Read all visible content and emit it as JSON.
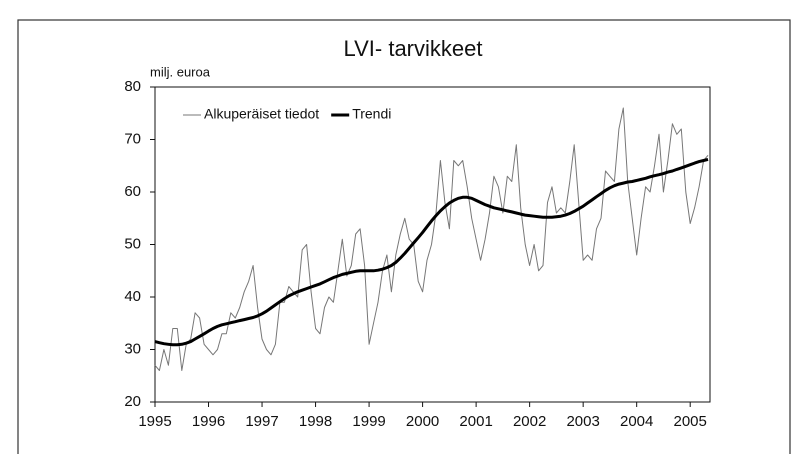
{
  "chart_data": {
    "type": "line",
    "title": "LVI- tarvikkeet",
    "y_label": "milj. euroa",
    "xlim": [
      1995,
      2005.37
    ],
    "xticks": [
      1995,
      1996,
      1997,
      1998,
      1999,
      2000,
      2001,
      2002,
      2003,
      2004,
      2005
    ],
    "ylim": [
      20,
      80
    ],
    "yticks": [
      20,
      30,
      40,
      50,
      60,
      70,
      80
    ],
    "legend": "top-left",
    "x": [
      1995,
      1995.083,
      1995.167,
      1995.25,
      1995.333,
      1995.417,
      1995.5,
      1995.583,
      1995.667,
      1995.75,
      1995.833,
      1995.917,
      1996,
      1996.083,
      1996.167,
      1996.25,
      1996.333,
      1996.417,
      1996.5,
      1996.583,
      1996.667,
      1996.75,
      1996.833,
      1996.917,
      1997,
      1997.083,
      1997.167,
      1997.25,
      1997.333,
      1997.417,
      1997.5,
      1997.583,
      1997.667,
      1997.75,
      1997.833,
      1997.917,
      1998,
      1998.083,
      1998.167,
      1998.25,
      1998.333,
      1998.417,
      1998.5,
      1998.583,
      1998.667,
      1998.75,
      1998.833,
      1998.917,
      1999,
      1999.083,
      1999.167,
      1999.25,
      1999.333,
      1999.417,
      1999.5,
      1999.583,
      1999.667,
      1999.75,
      1999.833,
      1999.917,
      2000,
      2000.083,
      2000.167,
      2000.25,
      2000.333,
      2000.417,
      2000.5,
      2000.583,
      2000.667,
      2000.75,
      2000.833,
      2000.917,
      2001,
      2001.083,
      2001.167,
      2001.25,
      2001.333,
      2001.417,
      2001.5,
      2001.583,
      2001.667,
      2001.75,
      2001.833,
      2001.917,
      2002,
      2002.083,
      2002.167,
      2002.25,
      2002.333,
      2002.417,
      2002.5,
      2002.583,
      2002.667,
      2002.75,
      2002.833,
      2002.917,
      2003,
      2003.083,
      2003.167,
      2003.25,
      2003.333,
      2003.417,
      2003.5,
      2003.583,
      2003.667,
      2003.75,
      2003.833,
      2003.917,
      2004,
      2004.083,
      2004.167,
      2004.25,
      2004.333,
      2004.417,
      2004.5,
      2004.583,
      2004.667,
      2004.75,
      2004.833,
      2004.917,
      2005,
      2005.083,
      2005.167,
      2005.25,
      2005.333
    ],
    "series": [
      {
        "name": "Alkuperäiset tiedot",
        "color": "#777777",
        "width": 1,
        "values": [
          27,
          26,
          30,
          27,
          34,
          34,
          26,
          31,
          32,
          37,
          36,
          31,
          30,
          29,
          30,
          33,
          33,
          37,
          36,
          38,
          41,
          43,
          46,
          38,
          32,
          30,
          29,
          31,
          39,
          39,
          42,
          41,
          40,
          49,
          50,
          41,
          34,
          33,
          38,
          40,
          39,
          45,
          51,
          44,
          46,
          52,
          53,
          46,
          31,
          35,
          39,
          45,
          48,
          41,
          48,
          52,
          55,
          51,
          50,
          43,
          41,
          47,
          50,
          56,
          66,
          58,
          53,
          66,
          65,
          66,
          61,
          55,
          51,
          47,
          51,
          56,
          63,
          61,
          56,
          63,
          62,
          69,
          57,
          50,
          46,
          50,
          45,
          46,
          58,
          61,
          56,
          57,
          56,
          62,
          69,
          58,
          47,
          48,
          47,
          53,
          55,
          64,
          63,
          62,
          72,
          76,
          62,
          55,
          48,
          55,
          61,
          60,
          65,
          71,
          60,
          66,
          73,
          71,
          72,
          60,
          54,
          57,
          61,
          66,
          67
        ]
      },
      {
        "name": "Trendi",
        "color": "#000000",
        "width": 3,
        "values": [
          31.5,
          31.3,
          31.1,
          31,
          30.9,
          30.9,
          31,
          31.2,
          31.5,
          32,
          32.5,
          33,
          33.5,
          34,
          34.4,
          34.7,
          34.9,
          35.1,
          35.3,
          35.5,
          35.7,
          35.9,
          36.1,
          36.4,
          36.8,
          37.3,
          37.9,
          38.5,
          39.1,
          39.7,
          40.2,
          40.6,
          41,
          41.3,
          41.6,
          41.9,
          42.2,
          42.5,
          42.9,
          43.3,
          43.7,
          44,
          44.3,
          44.5,
          44.7,
          44.9,
          45,
          45,
          45,
          45,
          45.1,
          45.3,
          45.6,
          46,
          46.6,
          47.4,
          48.3,
          49.3,
          50.3,
          51.3,
          52.3,
          53.4,
          54.5,
          55.5,
          56.4,
          57.2,
          57.9,
          58.4,
          58.8,
          59,
          59,
          58.8,
          58.4,
          58,
          57.6,
          57.3,
          57,
          56.8,
          56.6,
          56.4,
          56.2,
          56,
          55.8,
          55.6,
          55.5,
          55.4,
          55.3,
          55.2,
          55.2,
          55.2,
          55.3,
          55.4,
          55.6,
          55.9,
          56.3,
          56.8,
          57.3,
          57.9,
          58.5,
          59.1,
          59.7,
          60.3,
          60.8,
          61.2,
          61.5,
          61.7,
          61.9,
          62,
          62.2,
          62.4,
          62.6,
          62.9,
          63.1,
          63.3,
          63.5,
          63.8,
          64,
          64.3,
          64.6,
          64.9,
          65.2,
          65.5,
          65.8,
          66,
          66.2
        ]
      }
    ]
  }
}
